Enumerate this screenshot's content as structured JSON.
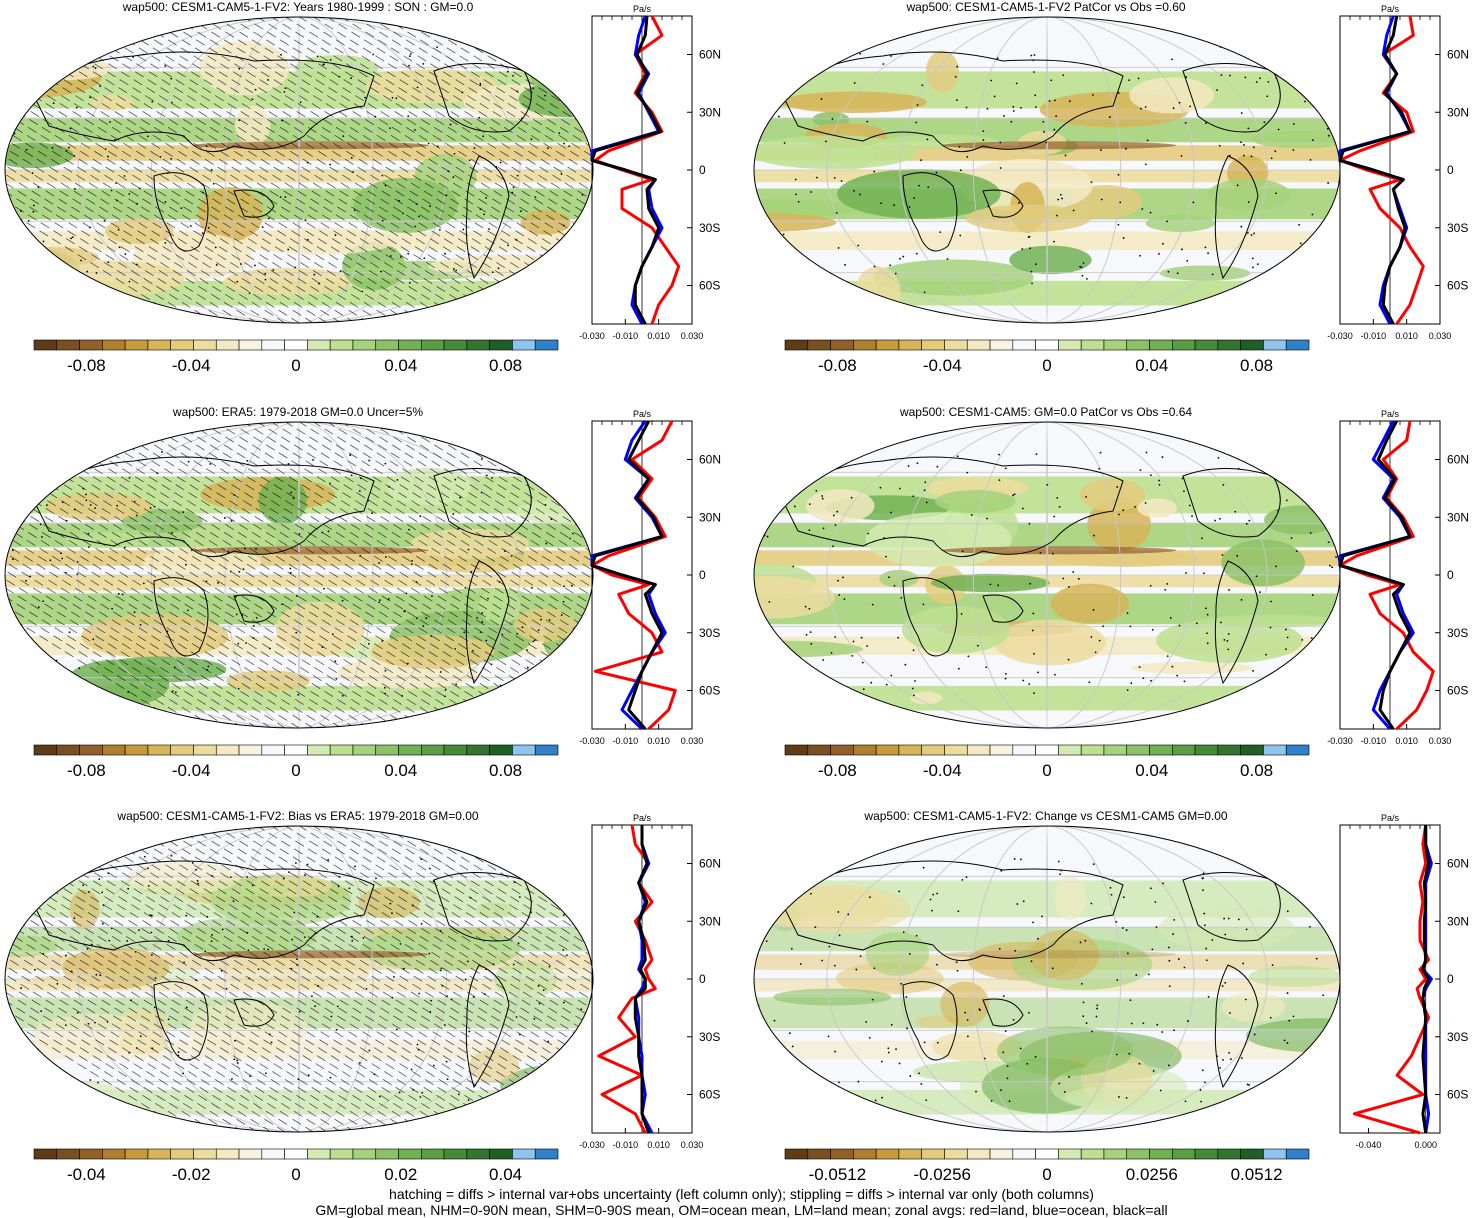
{
  "chart_data": [
    {
      "type": "heatmap",
      "title": "wap500: CESM1-CAM5-1-FV2: Years 1980-1999 : SON : GM=0.0",
      "colorbar_ticks": [
        "-0.08",
        "-0.04",
        "0",
        "0.04",
        "0.08"
      ],
      "colorbar_range": [
        -0.1,
        0.1
      ],
      "hatching": true,
      "profile": {
        "unit": "Pa/s",
        "x_ticks": [
          "-0.030",
          "-0.010",
          "0.010",
          "0.030"
        ],
        "xlim": [
          -0.03,
          0.03
        ],
        "lat_ticks": [
          "60N",
          "30N",
          "0",
          "30S",
          "60S"
        ],
        "ylim": [
          -80,
          80
        ],
        "lat": [
          80,
          70,
          60,
          50,
          40,
          30,
          20,
          10,
          5,
          0,
          -5,
          -10,
          -20,
          -30,
          -40,
          -50,
          -60,
          -70,
          -80
        ],
        "series": [
          {
            "name": "land",
            "values": [
              0.006,
              0.012,
              -0.004,
              0.002,
              -0.004,
              0.006,
              0.012,
              -0.02,
              -0.028,
              -0.012,
              0.006,
              -0.012,
              -0.012,
              0.006,
              0.014,
              0.022,
              0.018,
              0.01,
              0.006
            ]
          },
          {
            "name": "ocean",
            "values": [
              0.002,
              -0.002,
              -0.004,
              0.004,
              -0.002,
              0.004,
              0.01,
              -0.03,
              -0.03,
              -0.01,
              0.008,
              0.004,
              0.006,
              0.012,
              0.006,
              0.0,
              -0.004,
              -0.006,
              0.0
            ]
          },
          {
            "name": "all",
            "values": [
              0.003,
              0.002,
              -0.003,
              0.003,
              -0.003,
              0.005,
              0.011,
              -0.028,
              -0.03,
              -0.01,
              0.008,
              0.003,
              0.004,
              0.01,
              0.006,
              0.0,
              -0.004,
              -0.004,
              0.002
            ]
          }
        ]
      }
    },
    {
      "type": "heatmap",
      "title": "wap500: CESM1-CAM5-1-FV2 PatCor vs Obs =0.60",
      "colorbar_ticks": [
        "-0.08",
        "-0.04",
        "0",
        "0.04",
        "0.08"
      ],
      "colorbar_range": [
        -0.1,
        0.1
      ],
      "hatching": false,
      "profile": {
        "unit": "Pa/s",
        "x_ticks": [
          "-0.030",
          "-0.010",
          "0.010",
          "0.030"
        ],
        "xlim": [
          -0.03,
          0.03
        ],
        "lat_ticks": [
          "60N",
          "30N",
          "0",
          "30S",
          "60S"
        ],
        "ylim": [
          -80,
          80
        ],
        "lat": [
          80,
          70,
          60,
          50,
          40,
          30,
          20,
          10,
          5,
          0,
          -5,
          -10,
          -20,
          -30,
          -40,
          -50,
          -60,
          -70,
          -80
        ],
        "series": [
          {
            "name": "land",
            "values": [
              0.012,
              0.014,
              -0.004,
              0.004,
              -0.004,
              0.01,
              0.014,
              -0.018,
              -0.03,
              -0.014,
              0.006,
              -0.012,
              -0.006,
              0.006,
              0.012,
              0.02,
              0.016,
              0.012,
              0.004
            ]
          },
          {
            "name": "ocean",
            "values": [
              0.002,
              -0.002,
              -0.004,
              0.004,
              -0.002,
              0.006,
              0.012,
              -0.03,
              -0.03,
              -0.01,
              0.008,
              0.002,
              0.006,
              0.01,
              0.006,
              0.0,
              -0.004,
              -0.006,
              0.0
            ]
          },
          {
            "name": "all",
            "values": [
              0.004,
              0.002,
              -0.003,
              0.004,
              -0.003,
              0.007,
              0.012,
              -0.028,
              -0.03,
              -0.01,
              0.008,
              0.002,
              0.005,
              0.009,
              0.006,
              0.0,
              -0.003,
              -0.004,
              0.002
            ]
          }
        ]
      }
    },
    {
      "type": "heatmap",
      "title": "wap500: ERA5: 1979-2018 GM=0.0 Uncer=5%",
      "colorbar_ticks": [
        "-0.08",
        "-0.04",
        "0",
        "0.04",
        "0.08"
      ],
      "colorbar_range": [
        -0.1,
        0.1
      ],
      "hatching": true,
      "profile": {
        "unit": "Pa/s",
        "x_ticks": [
          "-0.030",
          "-0.010",
          "0.010",
          "0.030"
        ],
        "xlim": [
          -0.03,
          0.03
        ],
        "lat_ticks": [
          "60N",
          "30N",
          "0",
          "30S",
          "60S"
        ],
        "ylim": [
          -80,
          80
        ],
        "lat": [
          80,
          70,
          60,
          50,
          40,
          30,
          20,
          10,
          5,
          0,
          -5,
          -10,
          -20,
          -30,
          -40,
          -50,
          -60,
          -70,
          -80
        ],
        "series": [
          {
            "name": "land",
            "values": [
              0.018,
              0.012,
              -0.006,
              0.006,
              -0.002,
              0.008,
              0.014,
              -0.02,
              -0.03,
              -0.018,
              0.004,
              -0.014,
              -0.008,
              0.006,
              0.012,
              -0.028,
              0.02,
              0.016,
              0.004
            ]
          },
          {
            "name": "ocean",
            "values": [
              0.002,
              -0.006,
              -0.01,
              0.004,
              -0.004,
              0.006,
              0.012,
              -0.03,
              -0.03,
              -0.012,
              0.008,
              0.004,
              0.008,
              0.014,
              0.006,
              0.0,
              -0.006,
              -0.012,
              0.0
            ]
          },
          {
            "name": "all",
            "values": [
              0.004,
              -0.002,
              -0.008,
              0.004,
              -0.003,
              0.007,
              0.012,
              -0.028,
              -0.03,
              -0.012,
              0.008,
              0.002,
              0.006,
              0.012,
              0.006,
              0.0,
              -0.004,
              -0.008,
              0.002
            ]
          }
        ]
      }
    },
    {
      "type": "heatmap",
      "title": "wap500: CESM1-CAM5: GM=0.0 PatCor vs Obs =0.64",
      "colorbar_ticks": [
        "-0.08",
        "-0.04",
        "0",
        "0.04",
        "0.08"
      ],
      "colorbar_range": [
        -0.1,
        0.1
      ],
      "hatching": false,
      "profile": {
        "unit": "Pa/s",
        "x_ticks": [
          "-0.030",
          "-0.010",
          "0.010",
          "0.030"
        ],
        "xlim": [
          -0.03,
          0.03
        ],
        "lat_ticks": [
          "60N",
          "30N",
          "0",
          "30S",
          "60S"
        ],
        "ylim": [
          -80,
          80
        ],
        "lat": [
          80,
          70,
          60,
          50,
          40,
          30,
          20,
          10,
          5,
          0,
          -5,
          -10,
          -20,
          -30,
          -40,
          -50,
          -60,
          -70,
          -80
        ],
        "series": [
          {
            "name": "land",
            "values": [
              0.012,
              0.01,
              -0.004,
              0.004,
              -0.002,
              0.008,
              0.014,
              -0.02,
              -0.03,
              -0.014,
              0.006,
              -0.012,
              -0.006,
              0.008,
              0.014,
              0.026,
              0.022,
              0.016,
              0.004
            ]
          },
          {
            "name": "ocean",
            "values": [
              0.002,
              -0.004,
              -0.01,
              0.002,
              -0.004,
              0.006,
              0.012,
              -0.03,
              -0.03,
              -0.01,
              0.008,
              0.004,
              0.008,
              0.014,
              0.006,
              0.0,
              -0.006,
              -0.01,
              0.0
            ]
          },
          {
            "name": "all",
            "values": [
              0.004,
              -0.002,
              -0.007,
              0.003,
              -0.003,
              0.007,
              0.012,
              -0.028,
              -0.03,
              -0.01,
              0.008,
              0.002,
              0.006,
              0.012,
              0.006,
              0.0,
              -0.004,
              -0.006,
              0.002
            ]
          }
        ]
      }
    },
    {
      "type": "heatmap",
      "title": "wap500: CESM1-CAM5-1-FV2: Bias vs ERA5: 1979-2018  GM=0.00",
      "colorbar_ticks": [
        "-0.04",
        "-0.02",
        "0",
        "0.02",
        "0.04"
      ],
      "colorbar_range": [
        -0.05,
        0.05
      ],
      "hatching": true,
      "profile": {
        "unit": "Pa/s",
        "x_ticks": [
          "-0.030",
          "-0.010",
          "0.010",
          "0.030"
        ],
        "xlim": [
          -0.03,
          0.03
        ],
        "lat_ticks": [
          "60N",
          "30N",
          "0",
          "30S",
          "60S"
        ],
        "ylim": [
          -80,
          80
        ],
        "lat": [
          80,
          70,
          60,
          50,
          40,
          30,
          20,
          10,
          5,
          0,
          -5,
          -10,
          -20,
          -30,
          -40,
          -50,
          -60,
          -70,
          -80
        ],
        "series": [
          {
            "name": "land",
            "values": [
              -0.006,
              -0.004,
              0.004,
              -0.002,
              0.006,
              -0.004,
              0.002,
              0.006,
              0.002,
              0.004,
              0.008,
              -0.006,
              -0.014,
              -0.004,
              -0.026,
              0.0,
              -0.024,
              -0.004,
              0.002
            ]
          },
          {
            "name": "ocean",
            "values": [
              0.0,
              0.0,
              0.004,
              -0.002,
              0.002,
              -0.002,
              0.0,
              0.0,
              -0.002,
              0.002,
              0.0,
              -0.004,
              -0.002,
              -0.002,
              0.0,
              0.0,
              0.002,
              0.0,
              0.006
            ]
          },
          {
            "name": "all",
            "values": [
              0.0,
              0.0,
              0.003,
              -0.002,
              0.003,
              -0.002,
              0.001,
              0.002,
              -0.001,
              0.002,
              0.002,
              -0.004,
              -0.004,
              -0.002,
              -0.002,
              0.0,
              0.0,
              0.0,
              0.004
            ]
          }
        ]
      }
    },
    {
      "type": "heatmap",
      "title": "wap500: CESM1-CAM5-1-FV2: Change vs CESM1-CAM5 GM=0.00",
      "colorbar_ticks": [
        "-0.0512",
        "-0.0256",
        "0",
        "0.0256",
        "0.0512"
      ],
      "colorbar_range": [
        -0.064,
        0.064
      ],
      "hatching": false,
      "profile": {
        "unit": "Pa/s",
        "x_ticks": [
          "-0.040",
          "0.000"
        ],
        "xlim": [
          -0.06,
          0.01
        ],
        "lat_ticks": [
          "60N",
          "30N",
          "0",
          "30S",
          "60S"
        ],
        "ylim": [
          -80,
          80
        ],
        "lat": [
          80,
          70,
          60,
          50,
          40,
          30,
          20,
          10,
          5,
          0,
          -5,
          -10,
          -20,
          -30,
          -40,
          -50,
          -60,
          -70,
          -80
        ],
        "series": [
          {
            "name": "land",
            "values": [
              0.0,
              -0.002,
              0.0,
              -0.004,
              -0.002,
              -0.004,
              -0.004,
              0.002,
              -0.004,
              0.0,
              -0.006,
              -0.004,
              0.002,
              -0.004,
              -0.01,
              -0.02,
              -0.002,
              -0.05,
              -0.004
            ]
          },
          {
            "name": "ocean",
            "values": [
              0.0,
              0.0,
              0.004,
              0.0,
              0.0,
              0.0,
              0.0,
              0.0,
              -0.002,
              0.004,
              0.0,
              -0.002,
              0.0,
              0.0,
              0.0,
              0.0,
              0.0,
              0.002,
              0.0
            ]
          },
          {
            "name": "all",
            "values": [
              0.0,
              0.0,
              0.002,
              -0.001,
              0.0,
              -0.001,
              -0.001,
              0.0,
              -0.002,
              0.002,
              -0.001,
              -0.002,
              0.0,
              -0.001,
              -0.002,
              -0.001,
              0.0,
              -0.002,
              0.0
            ]
          }
        ]
      }
    }
  ],
  "footer": {
    "line1": "hatching = diffs > internal var+obs uncertainty (left column only); stippling = diffs > internal var only (both columns)",
    "line2": "GM=global mean, NHM=0-90N mean, SHM=0-90S mean, OM=ocean mean, LM=land mean; zonal avgs: red=land, blue=ocean, black=all"
  },
  "colors": {
    "land": "#ff0000",
    "ocean": "#0000ff",
    "all": "#000000",
    "colorbar": [
      "#5e3c17",
      "#7a4f21",
      "#946029",
      "#b07e2e",
      "#c79a3c",
      "#d7b458",
      "#e3cb7e",
      "#ecdc9f",
      "#f3e9c2",
      "#f8f3e0",
      "#f7f8fc",
      "#ffffff",
      "#d4eab2",
      "#bde090",
      "#a5d27a",
      "#8cc266",
      "#72b153",
      "#5a9e44",
      "#468a38",
      "#33752e",
      "#1f5e24",
      "#8fc4ee",
      "#2f7fc9"
    ]
  }
}
